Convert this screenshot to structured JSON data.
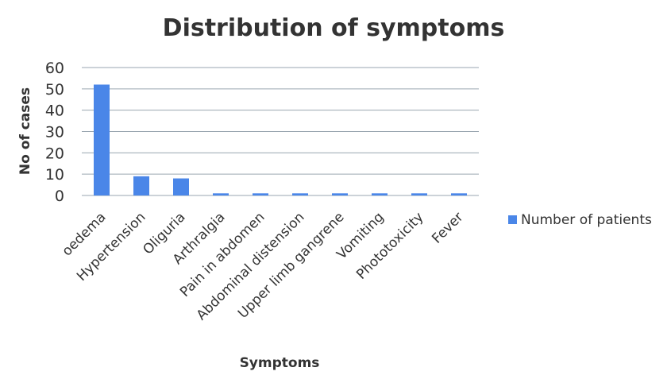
{
  "chart_data": {
    "type": "bar",
    "title": "Distribution of symptoms",
    "x_label": "Symptoms",
    "y_label": "No of cases",
    "categories": [
      "oedema",
      "Hypertension",
      "Oliguria",
      "Arthralgia",
      "Pain in abdomen",
      "Abdominal distension",
      "Upper limb gangrene",
      "Vomiting",
      "Phototoxicity",
      "Fever"
    ],
    "series": [
      {
        "name": "Number of patients",
        "color": "#4a86e8",
        "values": [
          52,
          9,
          8,
          1,
          1,
          1,
          1,
          1,
          1,
          1
        ]
      }
    ],
    "ylim": [
      0,
      60
    ],
    "yticks": [
      0,
      10,
      20,
      30,
      40,
      50,
      60
    ],
    "grid": true,
    "legend": "right"
  }
}
